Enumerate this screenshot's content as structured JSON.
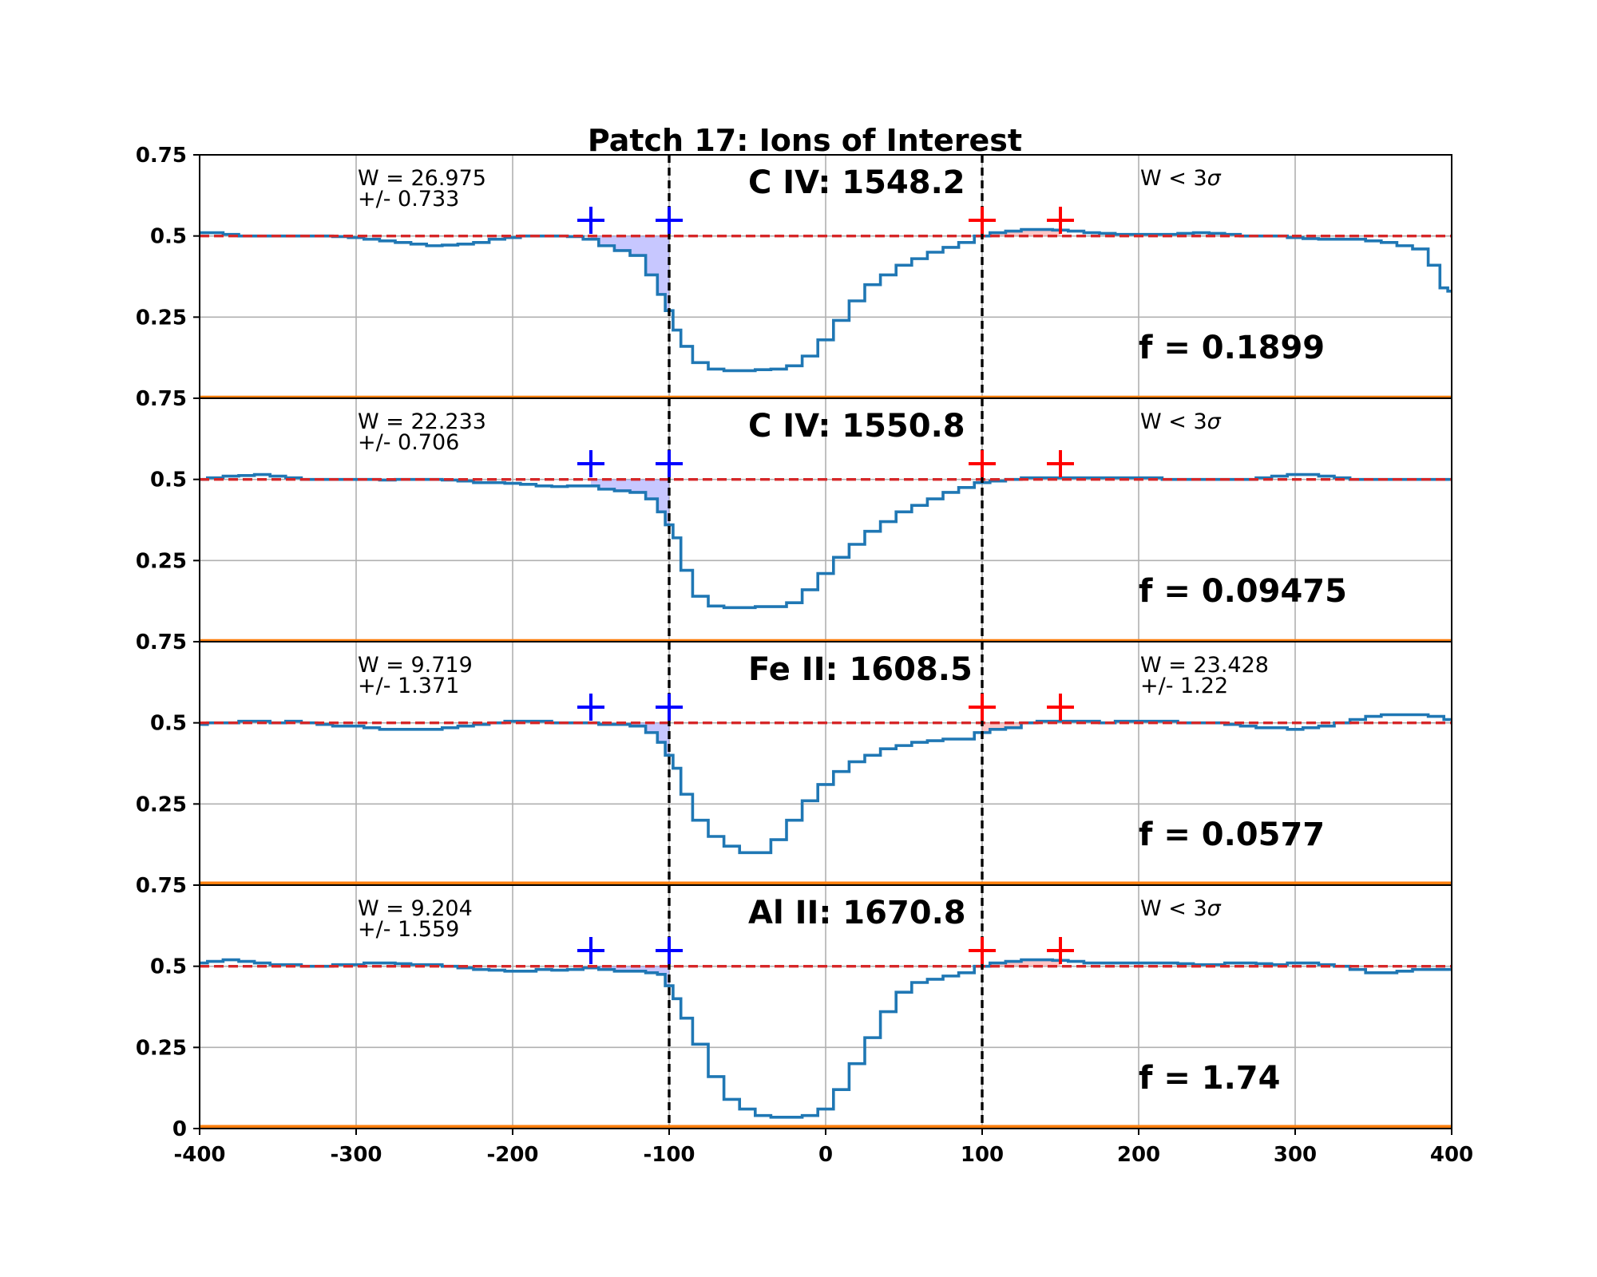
{
  "chart_data": {
    "type": "line",
    "title": "Patch 17: Ions of Interest",
    "xlim": [
      -400,
      400
    ],
    "x_ticks": [
      "-400",
      "-300",
      "-200",
      "-100",
      "0",
      "100",
      "200",
      "300",
      "400"
    ],
    "x_tick_values": [
      -400,
      -300,
      -200,
      -100,
      0,
      100,
      200,
      300,
      400
    ],
    "ylim": [
      0,
      0.75
    ],
    "y_ticks": [
      "0",
      "0.25",
      "0.5",
      "0.75"
    ],
    "y_tick_values": [
      0,
      0.25,
      0.5,
      0.75
    ],
    "grid": true,
    "continuum_level": 0.5,
    "vlines": [
      -100,
      100
    ],
    "markers": {
      "blue": [
        -150,
        -100
      ],
      "red": [
        100,
        150
      ]
    },
    "colors": {
      "flux": "#1f77b4",
      "error": "#ff7f0e",
      "continuum": "#d62728",
      "vline": "#000000",
      "blue_marker": "#0000ff",
      "red_marker": "#ff0000",
      "blue_fill": "#9999ff",
      "red_fill": "#ff9999"
    },
    "panels": [
      {
        "ion": "C IV: 1548.2",
        "left_w": "W = 26.975",
        "left_err": "+/- 0.733",
        "right_w": "W < 3",
        "right_sigma": "σ",
        "right_err": "",
        "f": "f = 0.1899",
        "x": [
          -400,
          -390,
          -380,
          -370,
          -360,
          -350,
          -340,
          -330,
          -320,
          -310,
          -300,
          -290,
          -280,
          -270,
          -260,
          -250,
          -240,
          -230,
          -220,
          -210,
          -200,
          -190,
          -180,
          -170,
          -160,
          -150,
          -140,
          -130,
          -120,
          -110,
          -105,
          -100,
          -95,
          -90,
          -80,
          -70,
          -60,
          -50,
          -40,
          -30,
          -20,
          -10,
          0,
          10,
          20,
          30,
          40,
          50,
          60,
          70,
          80,
          90,
          100,
          110,
          120,
          130,
          140,
          150,
          160,
          170,
          180,
          190,
          200,
          210,
          220,
          230,
          240,
          250,
          260,
          270,
          280,
          290,
          300,
          310,
          320,
          330,
          340,
          350,
          360,
          370,
          380,
          390,
          395,
          400
        ],
        "flux": [
          0.51,
          0.51,
          0.505,
          0.5,
          0.5,
          0.5,
          0.5,
          0.5,
          0.5,
          0.498,
          0.495,
          0.49,
          0.485,
          0.48,
          0.475,
          0.47,
          0.472,
          0.475,
          0.48,
          0.49,
          0.495,
          0.5,
          0.5,
          0.5,
          0.498,
          0.49,
          0.47,
          0.455,
          0.44,
          0.38,
          0.32,
          0.27,
          0.21,
          0.16,
          0.11,
          0.09,
          0.085,
          0.085,
          0.088,
          0.09,
          0.1,
          0.13,
          0.18,
          0.24,
          0.3,
          0.35,
          0.38,
          0.41,
          0.43,
          0.45,
          0.465,
          0.48,
          0.5,
          0.51,
          0.515,
          0.52,
          0.52,
          0.518,
          0.515,
          0.51,
          0.508,
          0.505,
          0.505,
          0.505,
          0.505,
          0.508,
          0.51,
          0.508,
          0.505,
          0.5,
          0.5,
          0.5,
          0.495,
          0.492,
          0.49,
          0.49,
          0.49,
          0.485,
          0.48,
          0.47,
          0.46,
          0.41,
          0.34,
          0.33
        ],
        "error": 0.003
      },
      {
        "ion": "C IV: 1550.8",
        "left_w": "W = 22.233",
        "left_err": "+/- 0.706",
        "right_w": "W < 3",
        "right_sigma": "σ",
        "right_err": "",
        "f": "f = 0.09475",
        "x": [
          -400,
          -390,
          -380,
          -370,
          -360,
          -350,
          -340,
          -330,
          -320,
          -310,
          -300,
          -290,
          -280,
          -270,
          -260,
          -250,
          -240,
          -230,
          -220,
          -210,
          -200,
          -190,
          -180,
          -170,
          -160,
          -150,
          -140,
          -130,
          -120,
          -110,
          -105,
          -100,
          -95,
          -90,
          -80,
          -70,
          -60,
          -50,
          -40,
          -30,
          -20,
          -10,
          0,
          10,
          20,
          30,
          40,
          50,
          60,
          70,
          80,
          90,
          100,
          110,
          120,
          130,
          140,
          150,
          160,
          170,
          180,
          190,
          200,
          210,
          220,
          230,
          240,
          250,
          260,
          270,
          280,
          290,
          300,
          310,
          320,
          330,
          340,
          350,
          360,
          370,
          380,
          390,
          400
        ],
        "flux": [
          0.5,
          0.505,
          0.51,
          0.512,
          0.515,
          0.51,
          0.505,
          0.5,
          0.5,
          0.5,
          0.5,
          0.5,
          0.498,
          0.5,
          0.5,
          0.5,
          0.498,
          0.495,
          0.49,
          0.49,
          0.488,
          0.485,
          0.48,
          0.478,
          0.48,
          0.48,
          0.47,
          0.465,
          0.46,
          0.44,
          0.4,
          0.36,
          0.32,
          0.22,
          0.14,
          0.11,
          0.105,
          0.105,
          0.108,
          0.108,
          0.12,
          0.16,
          0.21,
          0.26,
          0.3,
          0.34,
          0.37,
          0.4,
          0.42,
          0.44,
          0.46,
          0.475,
          0.49,
          0.495,
          0.5,
          0.505,
          0.505,
          0.505,
          0.505,
          0.505,
          0.505,
          0.505,
          0.505,
          0.505,
          0.5,
          0.5,
          0.5,
          0.5,
          0.5,
          0.5,
          0.505,
          0.51,
          0.515,
          0.515,
          0.51,
          0.505,
          0.5,
          0.5,
          0.5,
          0.5,
          0.5,
          0.5,
          0.5
        ],
        "error": 0.003
      },
      {
        "ion": "Fe II: 1608.5",
        "left_w": "W = 9.719",
        "left_err": "+/- 1.371",
        "right_w": "W = 23.428",
        "right_sigma": "",
        "right_err": "+/- 1.22",
        "f": "f = 0.0577",
        "x": [
          -400,
          -390,
          -380,
          -370,
          -360,
          -350,
          -340,
          -330,
          -320,
          -310,
          -300,
          -290,
          -280,
          -270,
          -260,
          -250,
          -240,
          -230,
          -220,
          -210,
          -200,
          -190,
          -180,
          -170,
          -160,
          -150,
          -140,
          -130,
          -120,
          -110,
          -105,
          -100,
          -95,
          -90,
          -80,
          -70,
          -60,
          -50,
          -40,
          -30,
          -20,
          -10,
          0,
          10,
          20,
          30,
          40,
          50,
          60,
          70,
          80,
          90,
          100,
          110,
          120,
          130,
          140,
          150,
          160,
          170,
          180,
          190,
          200,
          210,
          220,
          230,
          240,
          250,
          260,
          270,
          280,
          290,
          300,
          310,
          320,
          330,
          340,
          350,
          360,
          370,
          380,
          390,
          400
        ],
        "flux": [
          0.495,
          0.5,
          0.5,
          0.505,
          0.505,
          0.5,
          0.505,
          0.5,
          0.495,
          0.49,
          0.49,
          0.485,
          0.48,
          0.48,
          0.48,
          0.48,
          0.485,
          0.49,
          0.495,
          0.5,
          0.505,
          0.505,
          0.505,
          0.5,
          0.5,
          0.5,
          0.495,
          0.495,
          0.49,
          0.47,
          0.44,
          0.4,
          0.36,
          0.28,
          0.2,
          0.15,
          0.12,
          0.1,
          0.1,
          0.14,
          0.2,
          0.26,
          0.31,
          0.35,
          0.38,
          0.4,
          0.42,
          0.43,
          0.44,
          0.445,
          0.45,
          0.45,
          0.47,
          0.48,
          0.485,
          0.5,
          0.505,
          0.505,
          0.505,
          0.505,
          0.5,
          0.505,
          0.505,
          0.505,
          0.505,
          0.5,
          0.5,
          0.5,
          0.495,
          0.49,
          0.485,
          0.485,
          0.48,
          0.485,
          0.49,
          0.5,
          0.51,
          0.52,
          0.525,
          0.525,
          0.525,
          0.52,
          0.51
        ],
        "error": 0.006
      },
      {
        "ion": "Al II: 1670.8",
        "left_w": "W = 9.204",
        "left_err": "+/- 1.559",
        "right_w": "W < 3",
        "right_sigma": "σ",
        "right_err": "",
        "f": "f = 1.74",
        "x": [
          -400,
          -390,
          -380,
          -370,
          -360,
          -350,
          -340,
          -330,
          -320,
          -310,
          -300,
          -290,
          -280,
          -270,
          -260,
          -250,
          -240,
          -230,
          -220,
          -210,
          -200,
          -190,
          -180,
          -170,
          -160,
          -150,
          -140,
          -130,
          -120,
          -110,
          -105,
          -100,
          -95,
          -90,
          -80,
          -70,
          -60,
          -50,
          -40,
          -30,
          -20,
          -10,
          0,
          10,
          20,
          30,
          40,
          50,
          60,
          70,
          80,
          90,
          100,
          110,
          120,
          130,
          140,
          150,
          160,
          170,
          180,
          190,
          200,
          210,
          220,
          230,
          240,
          250,
          260,
          270,
          280,
          290,
          300,
          310,
          320,
          330,
          340,
          350,
          360,
          370,
          380,
          390,
          400
        ],
        "flux": [
          0.51,
          0.515,
          0.52,
          0.515,
          0.51,
          0.505,
          0.505,
          0.5,
          0.5,
          0.505,
          0.505,
          0.51,
          0.51,
          0.508,
          0.505,
          0.505,
          0.5,
          0.495,
          0.49,
          0.488,
          0.485,
          0.485,
          0.49,
          0.488,
          0.49,
          0.495,
          0.49,
          0.485,
          0.485,
          0.48,
          0.475,
          0.44,
          0.4,
          0.34,
          0.26,
          0.16,
          0.09,
          0.06,
          0.04,
          0.035,
          0.035,
          0.04,
          0.06,
          0.12,
          0.2,
          0.28,
          0.36,
          0.42,
          0.45,
          0.46,
          0.47,
          0.48,
          0.5,
          0.51,
          0.515,
          0.52,
          0.52,
          0.518,
          0.515,
          0.51,
          0.51,
          0.51,
          0.51,
          0.51,
          0.51,
          0.508,
          0.505,
          0.505,
          0.51,
          0.51,
          0.508,
          0.505,
          0.51,
          0.51,
          0.505,
          0.5,
          0.49,
          0.48,
          0.48,
          0.485,
          0.49,
          0.49,
          0.49
        ],
        "error": 0.006
      }
    ]
  }
}
